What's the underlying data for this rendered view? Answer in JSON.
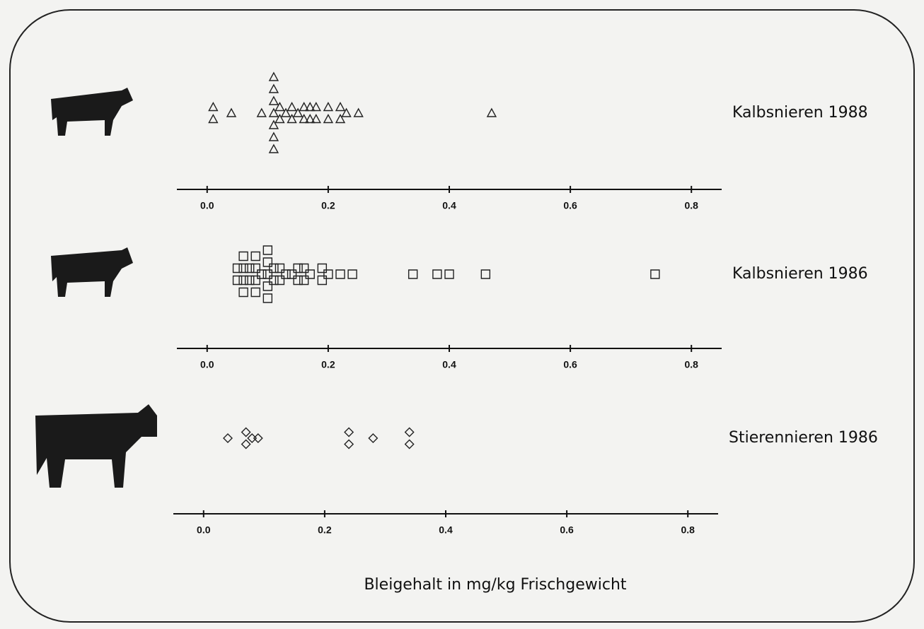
{
  "chart_data": [
    {
      "type": "strip",
      "label": "Kalbsnieren 1988",
      "marker": "triangle",
      "values": [
        0.01,
        0.01,
        0.04,
        0.09,
        0.11,
        0.11,
        0.11,
        0.11,
        0.11,
        0.11,
        0.11,
        0.12,
        0.12,
        0.13,
        0.14,
        0.14,
        0.15,
        0.16,
        0.16,
        0.17,
        0.17,
        0.18,
        0.18,
        0.2,
        0.2,
        0.22,
        0.22,
        0.23,
        0.25,
        0.47
      ],
      "xlim": [
        -0.05,
        0.85
      ],
      "xticks": [
        {
          "value": 0,
          "label": "0.0"
        },
        0.2,
        0.4,
        0.6,
        0.8
      ]
    },
    {
      "type": "strip",
      "label": "Kalbsnieren 1986",
      "marker": "square",
      "values": [
        0.05,
        0.05,
        0.06,
        0.06,
        0.06,
        0.06,
        0.07,
        0.07,
        0.08,
        0.08,
        0.08,
        0.08,
        0.09,
        0.1,
        0.1,
        0.1,
        0.1,
        0.1,
        0.11,
        0.11,
        0.12,
        0.12,
        0.13,
        0.14,
        0.15,
        0.15,
        0.16,
        0.16,
        0.17,
        0.19,
        0.19,
        0.2,
        0.22,
        0.24,
        0.34,
        0.38,
        0.4,
        0.46,
        0.74
      ],
      "xlim": [
        -0.05,
        0.85
      ],
      "xticks": [
        {
          "value": 0,
          "label": "0.0"
        },
        0.2,
        0.4,
        0.6,
        0.8
      ]
    },
    {
      "type": "strip",
      "label": "Stierennieren 1986",
      "marker": "diamond",
      "values": [
        0.04,
        0.07,
        0.07,
        0.08,
        0.09,
        0.24,
        0.24,
        0.28,
        0.34,
        0.34
      ],
      "xlim": [
        -0.05,
        0.85
      ],
      "xticks": [
        {
          "value": 0,
          "label": "0.0"
        },
        0.2,
        0.4,
        0.6,
        0.8
      ],
      "xlabel": "Bleigehalt in mg/kg Frischgewicht"
    }
  ]
}
